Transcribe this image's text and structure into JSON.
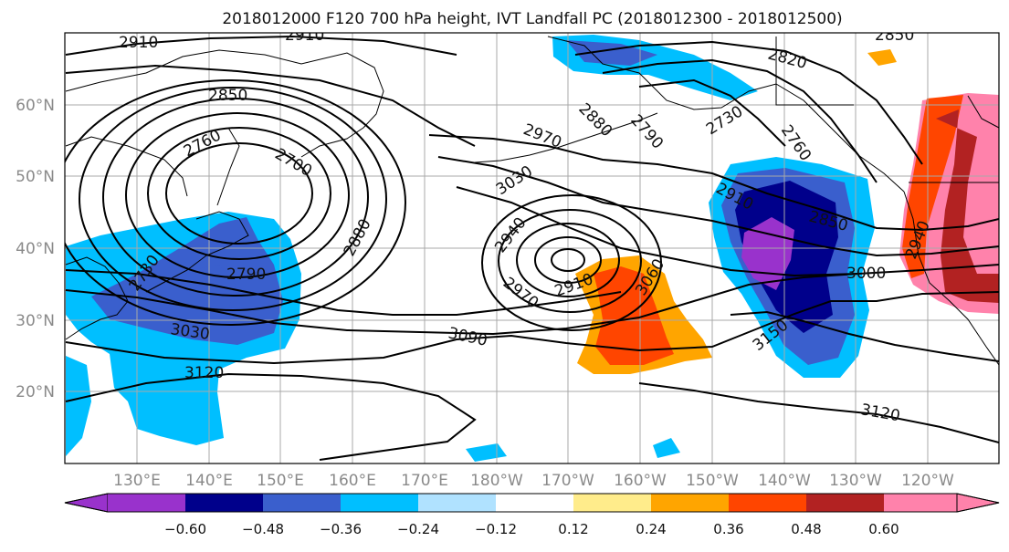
{
  "title": "2018012000 F120 700 hPa height, IVT Landfall PC (2018012300 - 2018012500)",
  "axes": {
    "lat_labels": [
      "60°N",
      "50°N",
      "40°N",
      "30°N",
      "20°N"
    ],
    "lon_labels": [
      "130°E",
      "140°E",
      "150°E",
      "160°E",
      "170°E",
      "180°W",
      "170°W",
      "160°W",
      "150°W",
      "140°W",
      "130°W",
      "120°W"
    ]
  },
  "colorbar": {
    "colors": [
      "#9932cc",
      "#00008b",
      "#3a5fcd",
      "#00bfff",
      "#b0e2ff",
      "#ffffff",
      "#ffec8b",
      "#ffa500",
      "#ff4500",
      "#b22222",
      "#ff82ab"
    ],
    "tick_labels": [
      "−0.60",
      "−0.48",
      "−0.36",
      "−0.24",
      "−0.12",
      "0.12",
      "0.24",
      "0.36",
      "0.48",
      "0.60"
    ]
  },
  "contour_labels": [
    "2910",
    "2910",
    "2850",
    "2850",
    "2820",
    "2760",
    "2760",
    "2700",
    "2790",
    "2730",
    "2880",
    "2970",
    "3030",
    "2940",
    "2880",
    "2910",
    "3060",
    "2970",
    "2910",
    "2850",
    "3000",
    "2940",
    "2730",
    "2790",
    "3030",
    "3120",
    "3090",
    "3150",
    "3120"
  ]
}
